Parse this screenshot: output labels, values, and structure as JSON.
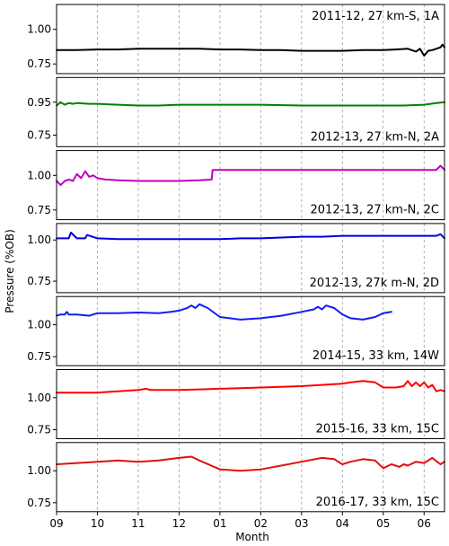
{
  "chart_data": {
    "type": "line",
    "ylabel": "Pressure (%OB)",
    "xlabel": "Month",
    "x_ticks": [
      "09",
      "10",
      "11",
      "12",
      "01",
      "02",
      "03",
      "04",
      "05",
      "06"
    ],
    "x_unit": "month since 1 Sep",
    "xlim": [
      0,
      9.5
    ],
    "grid": "vertical dashed at month ticks",
    "panels": [
      {
        "label": "2011-12, 27 km-S, 1A",
        "label_position": "top-right",
        "color": "#000000",
        "ylim": [
          0.68,
          1.18
        ],
        "yticks": [
          "1.00",
          "0.75"
        ],
        "yticks_values": [
          1.0,
          0.75
        ],
        "x": [
          0,
          0.5,
          1,
          1.5,
          2,
          2.5,
          3,
          3.5,
          4,
          4.5,
          5,
          5.5,
          6,
          6.5,
          7,
          7.5,
          8,
          8.3,
          8.6,
          8.8,
          8.9,
          9.0,
          9.1,
          9.2,
          9.3,
          9.4,
          9.45,
          9.5
        ],
        "values": [
          0.85,
          0.85,
          0.855,
          0.855,
          0.86,
          0.86,
          0.86,
          0.86,
          0.855,
          0.855,
          0.85,
          0.85,
          0.845,
          0.845,
          0.845,
          0.85,
          0.85,
          0.855,
          0.86,
          0.84,
          0.86,
          0.81,
          0.845,
          0.85,
          0.86,
          0.87,
          0.89,
          0.87
        ]
      },
      {
        "label": "2012-13, 27 km-N, 2A",
        "label_position": "bottom-right",
        "color": "#008000",
        "ylim": [
          0.68,
          1.1
        ],
        "yticks": [
          "0.95",
          "0.75"
        ],
        "yticks_values": [
          0.95,
          0.75
        ],
        "x": [
          0,
          0.05,
          0.1,
          0.2,
          0.3,
          0.4,
          0.5,
          0.8,
          1,
          1.5,
          2,
          2.5,
          3,
          4,
          5,
          6,
          7,
          8,
          8.5,
          9,
          9.3,
          9.5
        ],
        "values": [
          0.93,
          0.94,
          0.95,
          0.935,
          0.945,
          0.94,
          0.945,
          0.94,
          0.94,
          0.935,
          0.93,
          0.93,
          0.935,
          0.935,
          0.935,
          0.93,
          0.93,
          0.93,
          0.93,
          0.935,
          0.945,
          0.95
        ]
      },
      {
        "label": "2012-13, 27 km-N, 2C",
        "label_position": "bottom-right",
        "color": "#c000c0",
        "ylim": [
          0.68,
          1.18
        ],
        "yticks": [
          "1.00",
          "0.75"
        ],
        "yticks_values": [
          1.0,
          0.75
        ],
        "x": [
          0,
          0.1,
          0.2,
          0.3,
          0.4,
          0.5,
          0.6,
          0.7,
          0.8,
          0.9,
          1,
          1.2,
          1.5,
          2,
          2.5,
          3,
          3.5,
          3.8,
          3.82,
          4,
          4.5,
          5,
          6,
          7,
          8,
          9,
          9.3,
          9.4,
          9.5
        ],
        "values": [
          0.96,
          0.93,
          0.96,
          0.97,
          0.96,
          1.01,
          0.98,
          1.03,
          0.99,
          1.0,
          0.98,
          0.97,
          0.965,
          0.96,
          0.96,
          0.96,
          0.965,
          0.97,
          1.04,
          1.04,
          1.04,
          1.04,
          1.04,
          1.04,
          1.04,
          1.04,
          1.04,
          1.07,
          1.04
        ]
      },
      {
        "label": "2012-13, 27k m-N, 2D",
        "label_position": "bottom-right",
        "color": "#0000e0",
        "ylim": [
          0.68,
          1.1
        ],
        "yticks": [
          "1.00",
          "0.75"
        ],
        "yticks_values": [
          1.0,
          0.75
        ],
        "x": [
          0,
          0.2,
          0.3,
          0.35,
          0.5,
          0.7,
          0.75,
          1,
          1.5,
          2,
          3,
          4,
          4.5,
          5,
          5.5,
          6,
          6.5,
          7,
          7.5,
          8,
          8.5,
          9,
          9.3,
          9.4,
          9.5
        ],
        "values": [
          1.01,
          1.01,
          1.01,
          1.045,
          1.01,
          1.01,
          1.03,
          1.01,
          1.005,
          1.005,
          1.005,
          1.005,
          1.01,
          1.01,
          1.015,
          1.02,
          1.02,
          1.025,
          1.025,
          1.025,
          1.025,
          1.025,
          1.025,
          1.035,
          1.01
        ]
      },
      {
        "label": "2014-15, 33 km, 14W",
        "label_position": "bottom-right",
        "color": "#1020f0",
        "ylim": [
          0.68,
          1.22
        ],
        "yticks": [
          "1.00",
          "0.75"
        ],
        "yticks_values": [
          1.0,
          0.75
        ],
        "x": [
          0,
          0.1,
          0.2,
          0.25,
          0.3,
          0.5,
          0.8,
          1,
          1.5,
          2,
          2.5,
          2.8,
          3,
          3.2,
          3.3,
          3.4,
          3.5,
          3.7,
          4,
          4.5,
          5,
          5.5,
          6,
          6.3,
          6.4,
          6.5,
          6.6,
          6.8,
          7,
          7.2,
          7.5,
          7.8,
          8,
          8.2
        ],
        "values": [
          1.07,
          1.08,
          1.08,
          1.1,
          1.08,
          1.08,
          1.07,
          1.09,
          1.09,
          1.095,
          1.09,
          1.1,
          1.11,
          1.13,
          1.15,
          1.13,
          1.16,
          1.13,
          1.06,
          1.04,
          1.05,
          1.07,
          1.1,
          1.12,
          1.14,
          1.12,
          1.15,
          1.13,
          1.08,
          1.05,
          1.04,
          1.06,
          1.09,
          1.1
        ]
      },
      {
        "label": "2015-16, 33 km, 15C",
        "label_position": "bottom-right",
        "color": "#ff0000",
        "ylim": [
          0.68,
          1.22
        ],
        "yticks": [
          "1.00",
          "0.75"
        ],
        "yticks_values": [
          1.0,
          0.75
        ],
        "x": [
          0,
          0.5,
          1,
          1.5,
          2,
          2.2,
          2.3,
          2.5,
          3,
          3.5,
          4,
          4.5,
          5,
          5.5,
          6,
          6.5,
          7,
          7.2,
          7.5,
          7.8,
          8,
          8.3,
          8.5,
          8.6,
          8.7,
          8.8,
          8.9,
          9,
          9.1,
          9.2,
          9.3,
          9.4,
          9.5
        ],
        "values": [
          1.04,
          1.04,
          1.04,
          1.05,
          1.06,
          1.07,
          1.06,
          1.06,
          1.06,
          1.065,
          1.07,
          1.075,
          1.08,
          1.085,
          1.09,
          1.1,
          1.11,
          1.12,
          1.13,
          1.12,
          1.08,
          1.08,
          1.09,
          1.13,
          1.09,
          1.12,
          1.09,
          1.12,
          1.08,
          1.1,
          1.05,
          1.06,
          1.05
        ]
      },
      {
        "label": "2016-17, 33 km, 15C",
        "label_position": "bottom-right",
        "color": "#e01010",
        "ylim": [
          0.68,
          1.22
        ],
        "yticks": [
          "1.00",
          "0.75"
        ],
        "yticks_values": [
          1.0,
          0.75
        ],
        "x": [
          0,
          0.5,
          1,
          1.5,
          2,
          2.5,
          3,
          3.3,
          3.5,
          4,
          4.5,
          5,
          5.5,
          6,
          6.5,
          6.8,
          7,
          7.2,
          7.5,
          7.8,
          8,
          8.2,
          8.4,
          8.5,
          8.6,
          8.8,
          9,
          9.2,
          9.4,
          9.5
        ],
        "values": [
          1.05,
          1.06,
          1.07,
          1.08,
          1.07,
          1.08,
          1.1,
          1.11,
          1.08,
          1.01,
          1.0,
          1.01,
          1.04,
          1.07,
          1.1,
          1.09,
          1.05,
          1.07,
          1.09,
          1.08,
          1.02,
          1.05,
          1.03,
          1.05,
          1.04,
          1.07,
          1.06,
          1.1,
          1.05,
          1.07
        ]
      }
    ]
  }
}
